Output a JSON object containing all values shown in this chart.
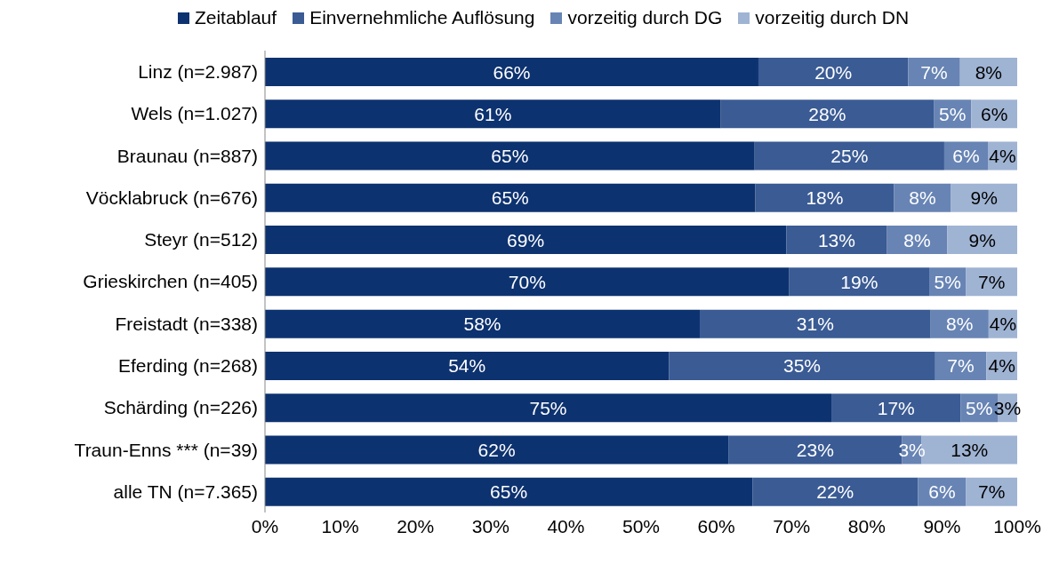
{
  "chart_data": {
    "type": "bar",
    "orientation": "horizontal",
    "stacked": true,
    "legend": "top",
    "grid": false,
    "categories": [
      "Linz (n=2.987)",
      "Wels (n=1.027)",
      "Braunau (n=887)",
      "Vöcklabruck (n=676)",
      "Steyr (n=512)",
      "Grieskirchen (n=405)",
      "Freistadt (n=338)",
      "Eferding (n=268)",
      "Schärding (n=226)",
      "Traun-Enns *** (n=39)",
      "alle TN (n=7.365)"
    ],
    "series": [
      {
        "name": "Zeitablauf",
        "color": "#0d3270",
        "values": [
          65.6,
          60.6,
          65.1,
          65.2,
          69.3,
          69.7,
          57.8,
          53.7,
          75.3,
          61.6,
          64.8
        ],
        "value_labels": [
          "66%",
          "61%",
          "65%",
          "65%",
          "69%",
          "70%",
          "58%",
          "54%",
          "75%",
          "62%",
          "65%"
        ]
      },
      {
        "name": "Einvernehmliche Auflösung",
        "color": "#3a5b94",
        "values": [
          19.9,
          28.3,
          25.2,
          18.4,
          13.4,
          18.6,
          30.7,
          35.4,
          17.2,
          23.1,
          22.0
        ],
        "value_labels": [
          "20%",
          "28%",
          "25%",
          "18%",
          "13%",
          "19%",
          "31%",
          "35%",
          "17%",
          "23%",
          "22%"
        ]
      },
      {
        "name": "vorzeitig durch DG",
        "color": "#6784b4",
        "values": [
          6.9,
          5.0,
          5.8,
          7.6,
          8.0,
          4.9,
          7.7,
          6.8,
          4.9,
          2.6,
          6.4
        ],
        "value_labels": [
          "7%",
          "5%",
          "6%",
          "8%",
          "8%",
          "5%",
          "8%",
          "7%",
          "5%",
          "3%",
          "6%"
        ]
      },
      {
        "name": "vorzeitig durch DN",
        "color": "#9fb3d3",
        "values": [
          7.6,
          6.1,
          3.9,
          8.8,
          9.3,
          6.8,
          3.8,
          4.1,
          2.6,
          12.7,
          6.8
        ],
        "value_labels": [
          "8%",
          "6%",
          "4%",
          "9%",
          "9%",
          "7%",
          "4%",
          "4%",
          "3%",
          "13%",
          "7%"
        ]
      }
    ],
    "xlim": [
      0,
      100
    ],
    "xticks": [
      {
        "value": 0,
        "label": "0%"
      },
      {
        "value": 10,
        "label": "10%"
      },
      {
        "value": 20,
        "label": "20%"
      },
      {
        "value": 30,
        "label": "30%"
      },
      {
        "value": 40,
        "label": "40%"
      },
      {
        "value": 50,
        "label": "50%"
      },
      {
        "value": 60,
        "label": "60%"
      },
      {
        "value": 70,
        "label": "70%"
      },
      {
        "value": 80,
        "label": "80%"
      },
      {
        "value": 90,
        "label": "90%"
      },
      {
        "value": 100,
        "label": "100%"
      }
    ]
  }
}
